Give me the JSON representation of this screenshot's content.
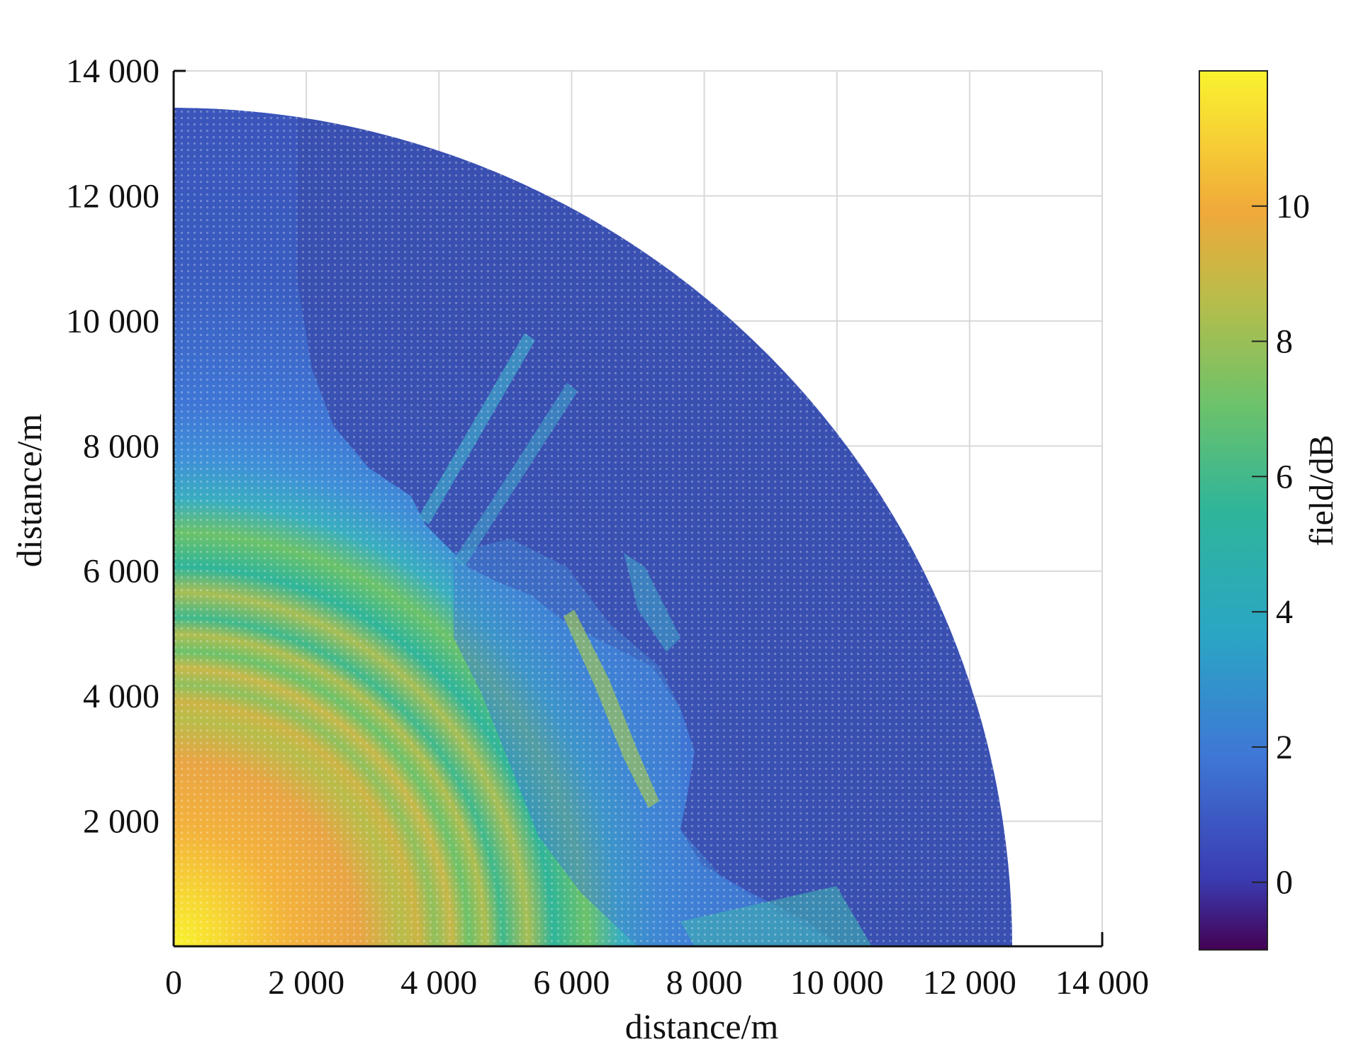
{
  "chart_data": {
    "type": "heatmap",
    "title": "",
    "xlabel": "distance/m",
    "ylabel": "distance/m",
    "xlim": [
      0,
      14000
    ],
    "ylim": [
      0,
      14000
    ],
    "x_ticks": [
      "0",
      "2 000",
      "4 000",
      "6 000",
      "8 000",
      "10 000",
      "12 000",
      "14 000"
    ],
    "x_tick_values": [
      0,
      2000,
      4000,
      6000,
      8000,
      10000,
      12000,
      14000
    ],
    "y_ticks": [
      "2 000",
      "4 000",
      "6 000",
      "8 000",
      "10 000",
      "12 000",
      "14 000"
    ],
    "y_tick_values": [
      2000,
      4000,
      6000,
      8000,
      10000,
      12000,
      14000
    ],
    "grid": true,
    "domain": "quarter-disc of radius ~13400 m centered at origin",
    "field_description_values": {
      "source_peak_db": 11,
      "near_field_rings_db_range": [
        5,
        9
      ],
      "far_field_db": 1
    },
    "colorbar": {
      "label": "field/dB",
      "range": [
        -1,
        12
      ],
      "ticks": [
        "0",
        "2",
        "4",
        "6",
        "8",
        "10"
      ],
      "tick_values": [
        0,
        2,
        4,
        6,
        8,
        10
      ],
      "colormap": [
        "#440154",
        "#3a3bb0",
        "#3f77d6",
        "#2aa6c4",
        "#2fb59a",
        "#6cc26a",
        "#b8bd4a",
        "#f0a93a",
        "#f7d834",
        "#f9f22e"
      ]
    }
  }
}
